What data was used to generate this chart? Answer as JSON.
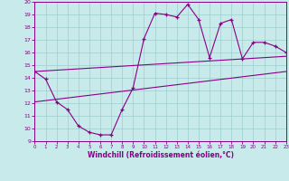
{
  "x": [
    0,
    1,
    2,
    3,
    4,
    5,
    6,
    7,
    8,
    9,
    10,
    11,
    12,
    13,
    14,
    15,
    16,
    17,
    18,
    19,
    20,
    21,
    22,
    23
  ],
  "zigzag": [
    14.5,
    13.9,
    12.1,
    11.5,
    10.2,
    9.7,
    9.5,
    9.5,
    11.5,
    13.2,
    17.1,
    19.1,
    19.0,
    18.8,
    19.8,
    18.6,
    15.6,
    18.3,
    18.6,
    15.5,
    16.8,
    16.8,
    16.5,
    16.0
  ],
  "upper_line_x": [
    0,
    23
  ],
  "upper_line_y": [
    14.5,
    15.7
  ],
  "lower_line_x": [
    0,
    23
  ],
  "lower_line_y": [
    12.1,
    14.5
  ],
  "ylim": [
    9,
    20
  ],
  "xlim": [
    0,
    23
  ],
  "yticks": [
    9,
    10,
    11,
    12,
    13,
    14,
    15,
    16,
    17,
    18,
    19,
    20
  ],
  "xticks": [
    0,
    1,
    2,
    3,
    4,
    5,
    6,
    7,
    8,
    9,
    10,
    11,
    12,
    13,
    14,
    15,
    16,
    17,
    18,
    19,
    20,
    21,
    22,
    23
  ],
  "xlabel": "Windchill (Refroidissement éolien,°C)",
  "line_color": "#880088",
  "bg_color": "#c8eaea",
  "grid_color": "#a0cccc"
}
